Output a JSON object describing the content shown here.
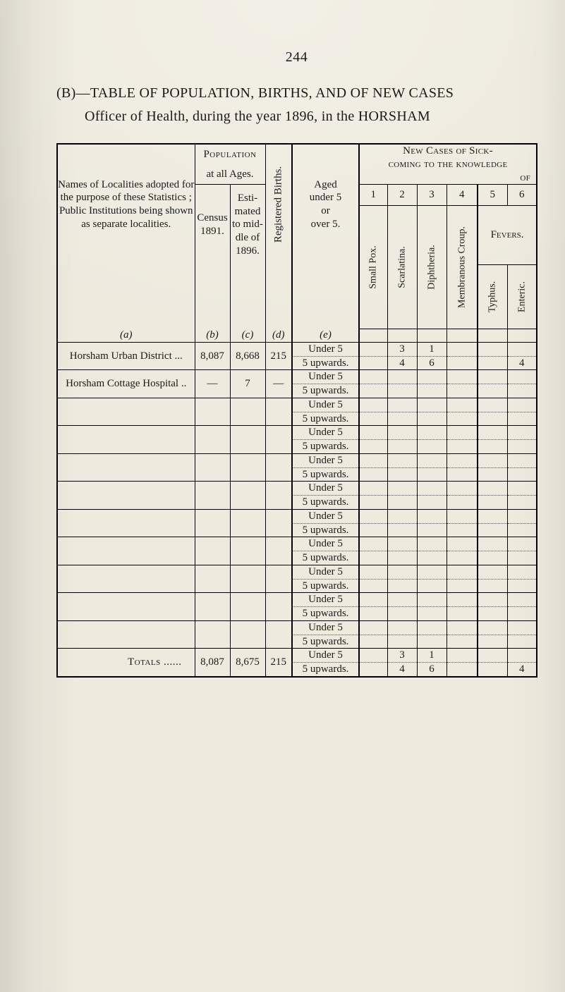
{
  "page_number": "244",
  "title_line": "(B)—TABLE OF POPULATION, BIRTHS, AND OF NEW CASES",
  "subtitle_line": "Officer of Health, during the year 1896, in the HORSHAM",
  "hdr": {
    "locality_block": "Names of Localities adopted for the purpose of these Statistics ; Public Institutions being shown as separate localities.",
    "locality_letter": "(a)",
    "population_top": "Population",
    "population_bot": "at all Ages.",
    "census_lines": "Census\n1891.",
    "census_letter": "(b)",
    "esti_lines": "Esti-\nmated\nto mid-\ndle of\n1896.",
    "esti_letter": "(c)",
    "reg_births": "Registered Births.",
    "reg_births_letter": "(d)",
    "aged_lines": "Aged\nunder 5\nor\nover 5.",
    "aged_letter": "(e)",
    "new_cases_top": "New Cases of Sick-",
    "new_cases_mid": "coming to the knowledge",
    "new_cases_of": "of",
    "nums": [
      "1",
      "2",
      "3",
      "4",
      "5",
      "6"
    ],
    "fevers": "Fevers.",
    "disease_labels": [
      "Small Pox.",
      "Scarlatina.",
      "Diphtheria.",
      "Membranous Croup.",
      "Typhus.",
      "Enteric."
    ]
  },
  "age_labels": {
    "under": "Under 5",
    "upwards": "5 upwards."
  },
  "rows": [
    {
      "name": "Horsham Urban District",
      "trail": "...",
      "census": "8,087",
      "esti": "8,668",
      "reg": "215",
      "under": [
        "",
        "3",
        "1",
        "",
        "",
        ""
      ],
      "upw": [
        "",
        "4",
        "6",
        "",
        "",
        "4"
      ]
    },
    {
      "name": "Horsham Cottage Hospital",
      "trail": "..",
      "census": "—",
      "esti": "7",
      "reg": "—",
      "under": [
        "",
        "",
        "",
        "",
        "",
        ""
      ],
      "upw": [
        "",
        "",
        "",
        "",
        "",
        ""
      ]
    },
    {
      "name": "",
      "census": "",
      "esti": "",
      "reg": "",
      "under": [
        "",
        "",
        "",
        "",
        "",
        ""
      ],
      "upw": [
        "",
        "",
        "",
        "",
        "",
        ""
      ]
    },
    {
      "name": "",
      "census": "",
      "esti": "",
      "reg": "",
      "under": [
        "",
        "",
        "",
        "",
        "",
        ""
      ],
      "upw": [
        "",
        "",
        "",
        "",
        "",
        ""
      ]
    },
    {
      "name": "",
      "census": "",
      "esti": "",
      "reg": "",
      "under": [
        "",
        "",
        "",
        "",
        "",
        ""
      ],
      "upw": [
        "",
        "",
        "",
        "",
        "",
        ""
      ]
    },
    {
      "name": "",
      "census": "",
      "esti": "",
      "reg": "",
      "under": [
        "",
        "",
        "",
        "",
        "",
        ""
      ],
      "upw": [
        "",
        "",
        "",
        "",
        "",
        ""
      ]
    },
    {
      "name": "",
      "census": "",
      "esti": "",
      "reg": "",
      "under": [
        "",
        "",
        "",
        "",
        "",
        ""
      ],
      "upw": [
        "",
        "",
        "",
        "",
        "",
        ""
      ]
    },
    {
      "name": "",
      "census": "",
      "esti": "",
      "reg": "",
      "under": [
        "",
        "",
        "",
        "",
        "",
        ""
      ],
      "upw": [
        "",
        "",
        "",
        "",
        "",
        ""
      ]
    },
    {
      "name": "",
      "census": "",
      "esti": "",
      "reg": "",
      "under": [
        "",
        "",
        "",
        "",
        "",
        ""
      ],
      "upw": [
        "",
        "",
        "",
        "",
        "",
        ""
      ]
    },
    {
      "name": "",
      "census": "",
      "esti": "",
      "reg": "",
      "under": [
        "",
        "",
        "",
        "",
        "",
        ""
      ],
      "upw": [
        "",
        "",
        "",
        "",
        "",
        ""
      ]
    },
    {
      "name": "",
      "census": "",
      "esti": "",
      "reg": "",
      "under": [
        "",
        "",
        "",
        "",
        "",
        ""
      ],
      "upw": [
        "",
        "",
        "",
        "",
        "",
        ""
      ]
    }
  ],
  "totals": {
    "label": "Totals ......",
    "census": "8,087",
    "esti": "8,675",
    "reg": "215",
    "under": [
      "",
      "3",
      "1",
      "",
      "",
      ""
    ],
    "upw": [
      "",
      "4",
      "6",
      "",
      "",
      "4"
    ]
  }
}
